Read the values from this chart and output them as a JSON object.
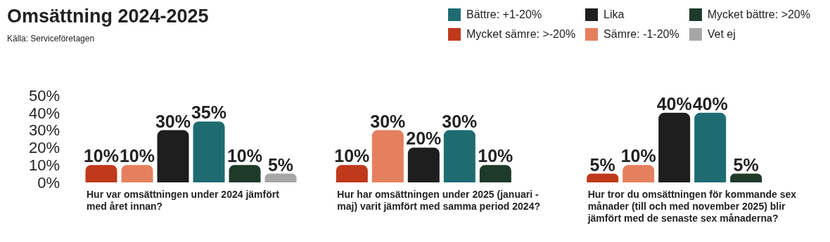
{
  "chart_data": {
    "type": "bar",
    "title": "Omsättning 2024-2025",
    "annotations": [
      "Källa: Serviceföretagen"
    ],
    "categories": [
      "Hur var omsättningen under 2024 jämfört med året innan?",
      "Hur har omsättningen under 2025 (januari - maj) varit jämfört med samma period 2024?",
      "Hur tror du omsättningen för kommande sex månader (till och med november 2025) blir jämfört med de senaste sex månaderna?"
    ],
    "series": [
      {
        "name": "Mycket sämre: >-20%",
        "color": "#c0391b",
        "values": [
          10,
          10,
          5
        ],
        "value_labels": [
          "10%",
          "10%",
          "5%"
        ]
      },
      {
        "name": "Sämre: -1-20%",
        "color": "#e5805e",
        "values": [
          10,
          30,
          10
        ],
        "value_labels": [
          "10%",
          "30%",
          "10%"
        ]
      },
      {
        "name": "Lika",
        "color": "#1e1e1e",
        "values": [
          30,
          20,
          40
        ],
        "value_labels": [
          "30%",
          "20%",
          "40%"
        ]
      },
      {
        "name": "Bättre: +1-20%",
        "color": "#1e6b72",
        "values": [
          35,
          30,
          40
        ],
        "value_labels": [
          "35%",
          "30%",
          "40%"
        ]
      },
      {
        "name": "Mycket bättre: >20%",
        "color": "#1e3a2a",
        "values": [
          10,
          10,
          5
        ],
        "value_labels": [
          "10%",
          "10%",
          "5%"
        ]
      },
      {
        "name": "Vet ej",
        "color": "#a6a6a6",
        "values": [
          5,
          null,
          null
        ],
        "value_labels": [
          "5%",
          null,
          null
        ]
      }
    ],
    "ylim": [
      0,
      50
    ],
    "yticks": [
      {
        "value": 0,
        "label": "0%"
      },
      {
        "value": 10,
        "label": "10%"
      },
      {
        "value": 20,
        "label": "20%"
      },
      {
        "value": 30,
        "label": "30%"
      },
      {
        "value": 40,
        "label": "40%"
      },
      {
        "value": 50,
        "label": "50%"
      }
    ],
    "grid": false,
    "legend": "top right"
  }
}
